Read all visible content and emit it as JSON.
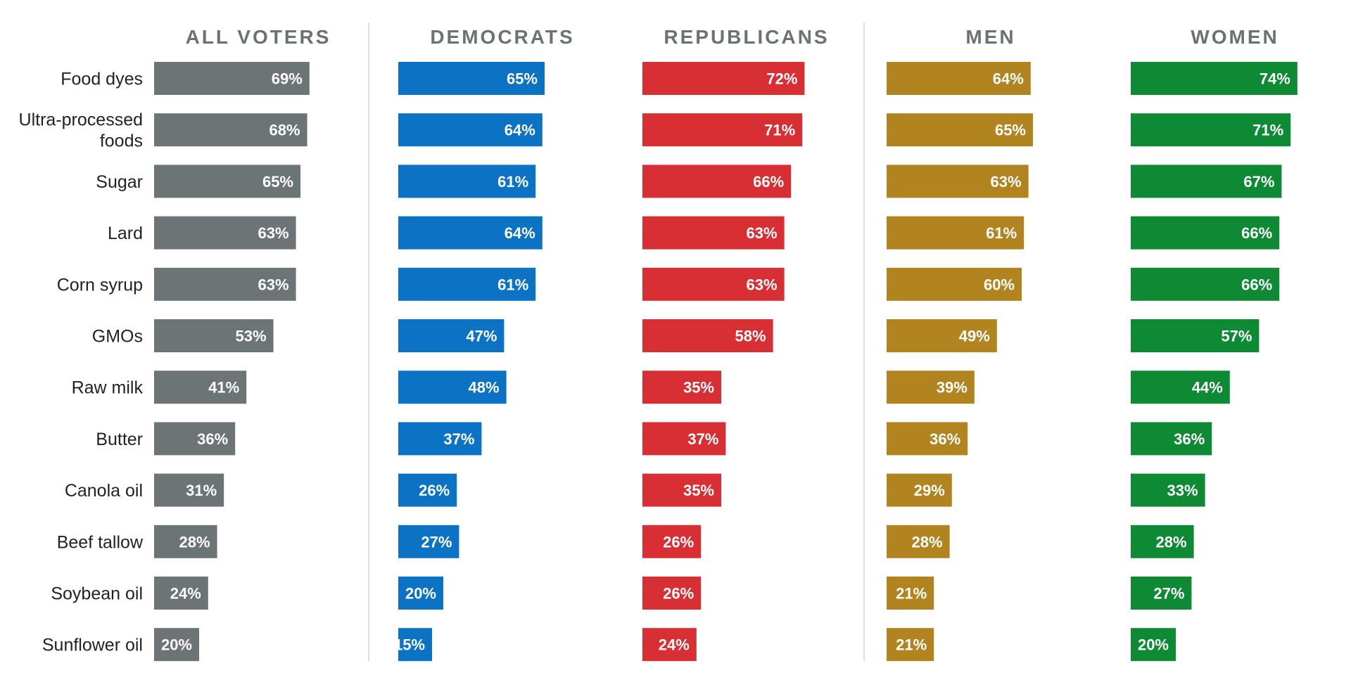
{
  "chart_data": {
    "type": "bar",
    "orientation": "horizontal",
    "categories": [
      [
        "Food dyes"
      ],
      [
        "Ultra-processed",
        "foods"
      ],
      [
        "Sugar"
      ],
      [
        "Lard"
      ],
      [
        "Corn syrup"
      ],
      [
        "GMOs"
      ],
      [
        "Raw milk"
      ],
      [
        "Butter"
      ],
      [
        "Canola oil"
      ],
      [
        "Beef tallow"
      ],
      [
        "Soybean oil"
      ],
      [
        "Sunflower oil"
      ]
    ],
    "unit": "%",
    "xlim": [
      0,
      100
    ],
    "grid": false,
    "legend": "none",
    "series": [
      {
        "name": "ALL VOTERS",
        "color": "#6d7475",
        "values": [
          69,
          68,
          65,
          63,
          63,
          53,
          41,
          36,
          31,
          28,
          24,
          20
        ]
      },
      {
        "name": "DEMOCRATS",
        "color": "#0b72c4",
        "values": [
          65,
          64,
          61,
          64,
          61,
          47,
          48,
          37,
          26,
          27,
          20,
          15
        ]
      },
      {
        "name": "REPUBLICANS",
        "color": "#d82f35",
        "values": [
          72,
          71,
          66,
          63,
          63,
          58,
          35,
          37,
          35,
          26,
          26,
          24
        ]
      },
      {
        "name": "MEN",
        "color": "#b2841f",
        "values": [
          64,
          65,
          63,
          61,
          60,
          49,
          39,
          36,
          29,
          28,
          21,
          21
        ]
      },
      {
        "name": "WOMEN",
        "color": "#0e8a35",
        "values": [
          74,
          71,
          67,
          66,
          66,
          57,
          44,
          36,
          33,
          28,
          27,
          20
        ]
      }
    ]
  }
}
